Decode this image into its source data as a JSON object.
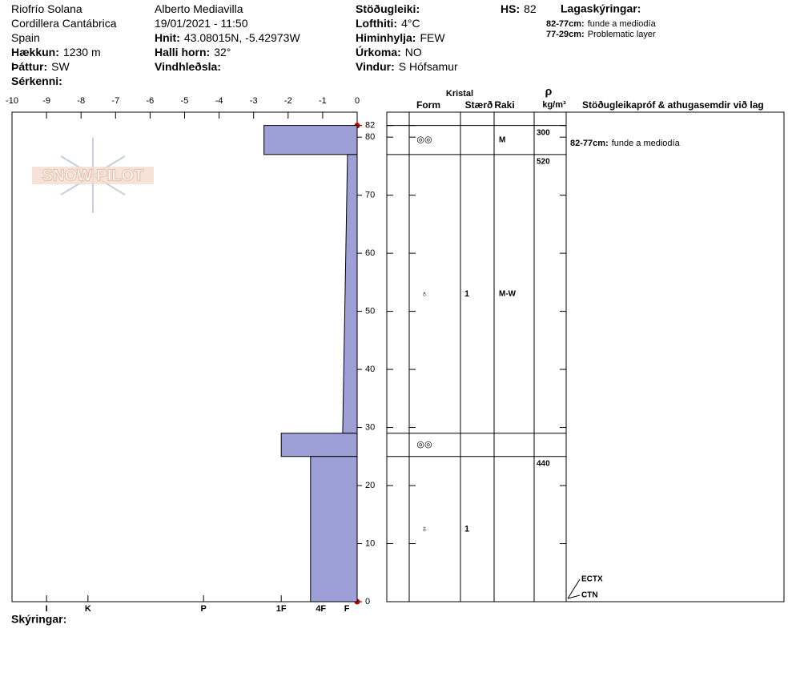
{
  "header": {
    "columns": [
      [
        {
          "value": "Riofrío Solana"
        },
        {
          "value": "Cordillera Cantábrica"
        },
        {
          "value": "Spain"
        },
        {
          "label": "Hækkun:",
          "value": "1230 m"
        },
        {
          "label": "Þáttur:",
          "value": "SW"
        },
        {
          "label": "Sérkenni:"
        }
      ],
      [
        {
          "value": "Alberto Mediavilla"
        },
        {
          "value": "19/01/2021 - 11:50"
        },
        {
          "label": "Hnit:",
          "value": "43.08015N, -5.42973W"
        },
        {
          "label": "Halli horn:",
          "value": "32°"
        },
        {
          "label": "Vindhleðsla:"
        }
      ],
      [
        {
          "label": "Stöðugleiki:"
        },
        {
          "label": "Lofthiti:",
          "value": "4°C"
        },
        {
          "label": "Himinhylja:",
          "value": "FEW"
        },
        {
          "label": "Úrkoma:",
          "value": "NO"
        },
        {
          "label": "Vindur:",
          "value": "S Hófsamur"
        }
      ],
      [
        {
          "label": "HS:",
          "value": 82
        }
      ]
    ],
    "legend": {
      "title": "Lagaskýringar:",
      "items": [
        {
          "label": "82-77cm:",
          "value": "funde a mediodía"
        },
        {
          "label": "77-29cm:",
          "value": "Problematic layer"
        }
      ]
    }
  },
  "logo": "SNOW PILOT",
  "footer": "Skýringar:",
  "table": {
    "group": "Kristal",
    "columns": [
      "Form",
      "Stærð",
      "Raki"
    ],
    "density_symbol": "ρ",
    "density_unit": "kg/m³",
    "comments_title": "Stöðugleikapróf & athugasemdir við lag",
    "comments": [
      {
        "label": "82-77cm:",
        "text": "funde a mediodía"
      }
    ],
    "tests": [
      "ECTX",
      "CTN"
    ]
  },
  "chart_data": {
    "type": "snow-profile",
    "color": "#9f9fd8",
    "xlim": [
      -10,
      0
    ],
    "xticks": [
      -10,
      -9,
      -8,
      -7,
      -6,
      -5,
      -4,
      -3,
      -2,
      -1,
      0
    ],
    "hardness_ticks": [
      {
        "value": -9,
        "label": "I"
      },
      {
        "value": -7.8,
        "label": "K"
      },
      {
        "value": -4.45,
        "label": "P"
      },
      {
        "value": -2.2,
        "label": "1F"
      },
      {
        "value": -1.05,
        "label": "4F"
      },
      {
        "value": -0.3,
        "label": "F"
      }
    ],
    "ylim": [
      0,
      84.3
    ],
    "yticks": [
      0,
      10,
      20,
      30,
      40,
      50,
      60,
      70,
      80,
      82
    ],
    "layers": [
      {
        "top": 82,
        "bottom": 77,
        "hardness_top": -2.7,
        "hardness_bottom": -2.7,
        "form": "◎◎",
        "moisture": "M",
        "density": 300
      },
      {
        "top": 77,
        "bottom": 29,
        "hardness_top": -0.28,
        "hardness_bottom": -0.42,
        "form": "♁",
        "size": 1,
        "moisture": "M-W",
        "density": 520
      },
      {
        "top": 29,
        "bottom": 25,
        "hardness_top": -2.2,
        "hardness_bottom": -2.2,
        "form": "◎◎"
      },
      {
        "top": 25,
        "bottom": 0,
        "hardness_top": -1.35,
        "hardness_bottom": -1.35,
        "form": "♁",
        "size": 1,
        "density": 440
      }
    ]
  }
}
